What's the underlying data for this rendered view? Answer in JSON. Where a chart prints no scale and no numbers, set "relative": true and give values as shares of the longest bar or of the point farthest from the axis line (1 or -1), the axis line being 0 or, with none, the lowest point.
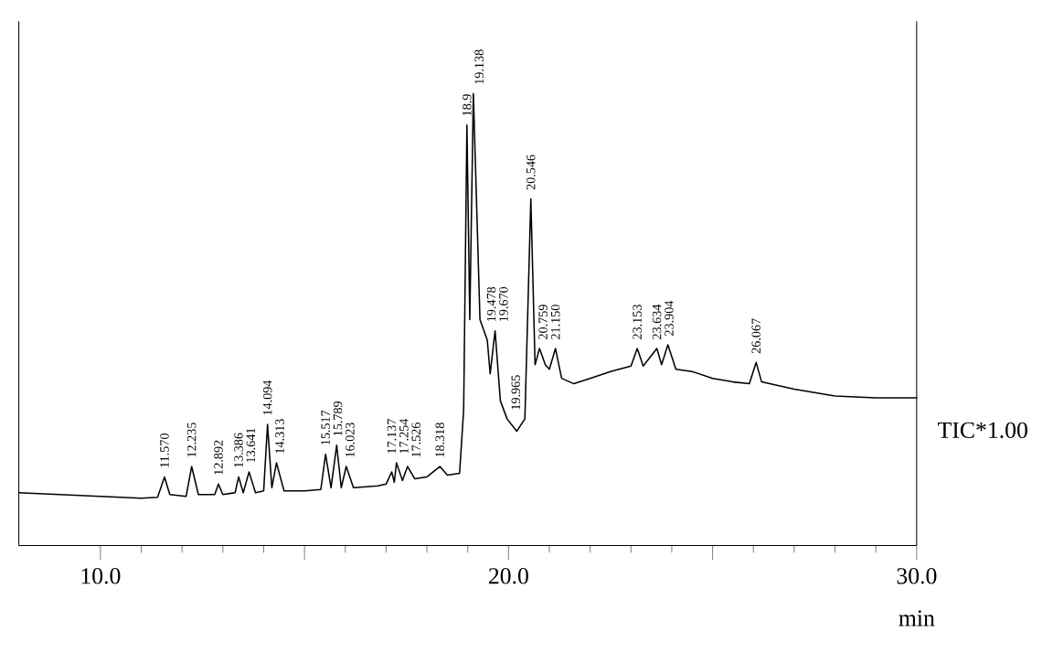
{
  "chart_data": {
    "type": "line",
    "relative": true,
    "xlabel": "min",
    "color": "#000000",
    "x": [
      8.0,
      9.0,
      10.0,
      11.0,
      11.4,
      11.57,
      11.7,
      12.1,
      12.235,
      12.4,
      12.8,
      12.892,
      13.0,
      13.3,
      13.386,
      13.5,
      13.641,
      13.8,
      14.0,
      14.094,
      14.2,
      14.313,
      14.5,
      15.0,
      15.4,
      15.517,
      15.65,
      15.789,
      15.9,
      16.023,
      16.2,
      16.8,
      17.0,
      17.137,
      17.2,
      17.254,
      17.4,
      17.526,
      17.7,
      18.0,
      18.318,
      18.5,
      18.8,
      18.9,
      18.98,
      19.05,
      19.138,
      19.3,
      19.478,
      19.55,
      19.67,
      19.8,
      19.965,
      20.2,
      20.4,
      20.546,
      20.65,
      20.759,
      20.9,
      21.0,
      21.15,
      21.3,
      21.6,
      22.0,
      22.5,
      23.0,
      23.153,
      23.3,
      23.634,
      23.75,
      23.904,
      24.1,
      24.5,
      25.0,
      25.5,
      25.9,
      26.067,
      26.2,
      27.0,
      28.0,
      29.0,
      30.0
    ],
    "values": [
      0.117,
      0.113,
      0.109,
      0.105,
      0.107,
      0.152,
      0.113,
      0.109,
      0.175,
      0.113,
      0.113,
      0.136,
      0.113,
      0.117,
      0.152,
      0.117,
      0.163,
      0.117,
      0.121,
      0.268,
      0.128,
      0.183,
      0.121,
      0.121,
      0.124,
      0.202,
      0.128,
      0.222,
      0.128,
      0.175,
      0.128,
      0.132,
      0.136,
      0.163,
      0.14,
      0.183,
      0.144,
      0.175,
      0.148,
      0.152,
      0.175,
      0.156,
      0.16,
      0.3,
      0.93,
      0.5,
      1.0,
      0.5,
      0.455,
      0.38,
      0.475,
      0.32,
      0.28,
      0.253,
      0.28,
      0.767,
      0.4,
      0.436,
      0.4,
      0.39,
      0.436,
      0.37,
      0.358,
      0.37,
      0.385,
      0.397,
      0.436,
      0.397,
      0.436,
      0.4,
      0.444,
      0.39,
      0.385,
      0.37,
      0.362,
      0.358,
      0.405,
      0.362,
      0.346,
      0.331,
      0.327,
      0.327
    ],
    "xlim": [
      8.0,
      30.0
    ],
    "xticks": [
      {
        "value": 10,
        "label": "10.0"
      },
      {
        "value": 15,
        "label": null
      },
      {
        "value": 20,
        "label": "20.0"
      },
      {
        "value": 25,
        "label": null
      },
      {
        "value": 30,
        "label": "30.0"
      }
    ],
    "tick_labels": "x",
    "marker": "none",
    "annotations": [
      {
        "text": "11.570",
        "x": 11.57,
        "y": 0.152
      },
      {
        "text": "12.235",
        "x": 12.235,
        "y": 0.175
      },
      {
        "text": "12.892",
        "x": 12.892,
        "y": 0.136
      },
      {
        "text": "13.386",
        "x": 13.386,
        "y": 0.152
      },
      {
        "text": "13.641",
        "x": 13.641,
        "y": 0.163
      },
      {
        "text": "14.094",
        "x": 14.094,
        "y": 0.268
      },
      {
        "text": "14.313",
        "x": 14.313,
        "y": 0.183
      },
      {
        "text": "15.517",
        "x": 15.517,
        "y": 0.202
      },
      {
        "text": "15.789",
        "x": 15.789,
        "y": 0.222
      },
      {
        "text": "16.023",
        "x": 16.023,
        "y": 0.175
      },
      {
        "text": "17.137",
        "x": 17.137,
        "y": 0.163
      },
      {
        "text": "17.254",
        "x": 17.254,
        "y": 0.183
      },
      {
        "text": "17.526",
        "x": 17.526,
        "y": 0.175
      },
      {
        "text": "18.318",
        "x": 18.318,
        "y": 0.175
      },
      {
        "text": "18.9",
        "x": 18.98,
        "y": 0.93
      },
      {
        "text": "19.138",
        "x": 19.138,
        "y": 1.0
      },
      {
        "text": "19.478",
        "x": 19.478,
        "y": 0.455
      },
      {
        "text": "19.670",
        "x": 19.67,
        "y": 0.475
      },
      {
        "text": "19.965",
        "x": 19.965,
        "y": 0.28
      },
      {
        "text": "20.546",
        "x": 20.546,
        "y": 0.767
      },
      {
        "text": "20.759",
        "x": 20.759,
        "y": 0.436
      },
      {
        "text": "21.150",
        "x": 21.15,
        "y": 0.436
      },
      {
        "text": "23.153",
        "x": 23.153,
        "y": 0.436
      },
      {
        "text": "23.634",
        "x": 23.634,
        "y": 0.436
      },
      {
        "text": "23.904",
        "x": 23.904,
        "y": 0.444
      },
      {
        "text": "26.067",
        "x": 26.067,
        "y": 0.405
      },
      "TIC*1.00"
    ]
  }
}
